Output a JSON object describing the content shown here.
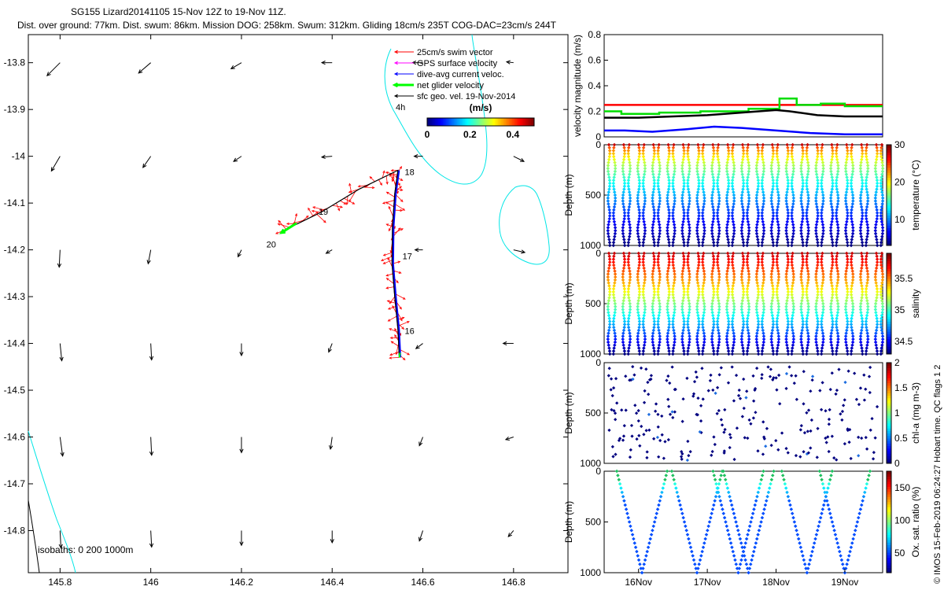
{
  "title": {
    "line1": "SG155 Lizard20141105 15-Nov 12Z to 19-Nov 11Z.",
    "line2": "Dist. over ground: 77km. Dist. swum: 86km. Mission DOG: 258km. Swum: 312km. Gliding 18cm/s 235T COG-DAC=23cm/s 244T"
  },
  "footer": "© IMOS 15-Feb-2019 06:24:27 Hobart time. QC flags 1  2",
  "colors": {
    "swim": "#ff0000",
    "gps": "#ff00ff",
    "dac": "#0000ff",
    "net": "#00ff00",
    "geo": "#000000",
    "isobath": "#00e6e6"
  },
  "chart_data": [
    {
      "id": "map",
      "type": "scatter",
      "xlim": [
        145.73,
        146.92
      ],
      "ylim": [
        -14.89,
        -13.74
      ],
      "xticks": [
        145.8,
        146,
        146.2,
        146.4,
        146.6,
        146.8
      ],
      "xtick_labels": [
        "145.8",
        "146",
        "146.2",
        "146.4",
        "146.6",
        "146.8"
      ],
      "yticks": [
        -13.8,
        -13.9,
        -14,
        -14.1,
        -14.2,
        -14.3,
        -14.4,
        -14.5,
        -14.6,
        -14.7,
        -14.8
      ],
      "ytick_labels": [
        "-13.8",
        "-13.9",
        "-14",
        "-14.1",
        "-14.2",
        "-14.3",
        "-14.4",
        "-14.5",
        "-14.6",
        "-14.7",
        "-14.8"
      ],
      "legend": {
        "placement": "top-right",
        "entries": [
          {
            "label": "25cm/s swim vector",
            "color": "#ff0000"
          },
          {
            "label": "GPS surface velocity",
            "color": "#ff00ff"
          },
          {
            "label": "dive-avg current veloc.",
            "color": "#0000ff"
          },
          {
            "label": "net glider velocity",
            "color": "#00ff00"
          },
          {
            "label": "sfc geo. vel. 19-Nov-2014",
            "color": "#000000"
          }
        ],
        "note": "4h"
      },
      "colorbar": {
        "label": "(m/s)",
        "ticks": [
          "0",
          "0.2",
          "0.4"
        ],
        "range": [
          0,
          0.5
        ]
      },
      "isobath_label": "isobaths: 0   200  1000m",
      "track": [
        {
          "lon": 146.548,
          "lat": -14.43
        },
        {
          "lon": 146.545,
          "lat": -14.37
        },
        {
          "lon": 146.538,
          "lat": -14.3
        },
        {
          "lon": 146.532,
          "lat": -14.23
        },
        {
          "lon": 146.533,
          "lat": -14.15
        },
        {
          "lon": 146.538,
          "lat": -14.08
        },
        {
          "lon": 146.545,
          "lat": -14.03
        },
        {
          "lon": 146.46,
          "lat": -14.07
        },
        {
          "lon": 146.375,
          "lat": -14.12
        },
        {
          "lon": 146.29,
          "lat": -14.16
        }
      ],
      "day_labels": [
        {
          "text": "16",
          "lon": 146.56,
          "lat": -14.38
        },
        {
          "text": "17",
          "lon": 146.555,
          "lat": -14.22
        },
        {
          "text": "18",
          "lon": 146.56,
          "lat": -14.04
        },
        {
          "text": "19",
          "lon": 146.37,
          "lat": -14.125
        },
        {
          "text": "20",
          "lon": 146.255,
          "lat": -14.195
        }
      ],
      "geo_vectors": {
        "lons": [
          145.8,
          146.0,
          146.2,
          146.4,
          146.6,
          146.8
        ],
        "lats": [
          -13.8,
          -14.0,
          -14.2,
          -14.4,
          -14.6,
          -14.8
        ],
        "u": [
          [
            -0.15,
            -0.14,
            -0.12,
            -0.12,
            -0.12,
            -0.08
          ],
          [
            -0.1,
            -0.09,
            -0.09,
            -0.12,
            -0.1,
            0.12
          ],
          [
            -0.01,
            -0.03,
            -0.04,
            -0.07,
            -0.09,
            0.13
          ],
          [
            0.02,
            0.01,
            0.0,
            -0.04,
            -0.08,
            -0.12
          ],
          [
            0.03,
            0.01,
            0.0,
            -0.02,
            -0.04,
            -0.09
          ],
          [
            0.01,
            0.01,
            0.0,
            0.0,
            -0.04,
            -0.06
          ]
        ],
        "v": [
          [
            -0.15,
            -0.12,
            -0.07,
            0.0,
            0.0,
            0.01
          ],
          [
            -0.17,
            -0.13,
            -0.06,
            -0.01,
            0.0,
            -0.06
          ],
          [
            -0.2,
            -0.16,
            -0.08,
            -0.04,
            0.0,
            -0.03
          ],
          [
            -0.2,
            -0.19,
            -0.14,
            -0.1,
            -0.06,
            0.0
          ],
          [
            -0.22,
            -0.21,
            -0.18,
            -0.14,
            -0.1,
            -0.03
          ],
          [
            -0.2,
            -0.19,
            -0.17,
            -0.14,
            -0.12,
            -0.07
          ]
        ]
      }
    },
    {
      "id": "velocity",
      "type": "line",
      "ylabel": "velocity magnitude (m/s)",
      "xlim": [
        15.5,
        19.55
      ],
      "ylim": [
        0,
        0.8
      ],
      "yticks": [
        0,
        0.2,
        0.4,
        0.6,
        0.8
      ],
      "ytick_labels": [
        "0",
        "0.2",
        "0.4",
        "0.6",
        "0.8"
      ],
      "series": [
        {
          "color": "#ff0000",
          "x": [
            15.5,
            19.55
          ],
          "y": [
            0.25,
            0.25
          ]
        },
        {
          "color": "#00dd00",
          "x": [
            15.5,
            15.75,
            15.75,
            16.3,
            16.3,
            16.9,
            16.9,
            17.6,
            17.6,
            18.05,
            18.05,
            18.3,
            18.3,
            18.65,
            18.65,
            19.0,
            19.0,
            19.55
          ],
          "y": [
            0.2,
            0.2,
            0.18,
            0.18,
            0.19,
            0.19,
            0.2,
            0.2,
            0.22,
            0.22,
            0.3,
            0.3,
            0.25,
            0.25,
            0.26,
            0.26,
            0.24,
            0.24
          ]
        },
        {
          "color": "#000000",
          "x": [
            15.5,
            16.0,
            16.5,
            17.0,
            17.5,
            18.0,
            18.2,
            18.6,
            19.0,
            19.55
          ],
          "y": [
            0.15,
            0.15,
            0.16,
            0.17,
            0.19,
            0.21,
            0.2,
            0.17,
            0.16,
            0.16
          ]
        },
        {
          "color": "#0000ff",
          "x": [
            15.5,
            15.8,
            16.2,
            16.7,
            17.1,
            17.5,
            18.0,
            18.5,
            19.0,
            19.55
          ],
          "y": [
            0.05,
            0.05,
            0.04,
            0.06,
            0.08,
            0.07,
            0.05,
            0.03,
            0.02,
            0.02
          ]
        }
      ]
    },
    {
      "id": "temperature",
      "type": "scatter",
      "ylabel": "Depth (m)",
      "colorbar_label": "temperature (°C)",
      "clim": [
        3,
        30
      ],
      "colorbar_ticks": [
        "10",
        "20",
        "30"
      ],
      "ylim": [
        1000,
        0
      ],
      "yticks": [
        "0",
        "500",
        "1000"
      ],
      "dives": 19
    },
    {
      "id": "salinity",
      "type": "scatter",
      "ylabel": "Depth (m)",
      "colorbar_label": "salinity",
      "clim": [
        34.3,
        35.9
      ],
      "colorbar_ticks": [
        "34.5",
        "35",
        "35.5"
      ],
      "ylim": [
        1000,
        0
      ],
      "yticks": [
        "0",
        "500",
        "1000"
      ],
      "dives": 19
    },
    {
      "id": "chla",
      "type": "scatter",
      "ylabel": "Depth (m)",
      "colorbar_label": "chl-a (mg m-3)",
      "clim": [
        0,
        2
      ],
      "colorbar_ticks": [
        "0",
        "0.5",
        "1",
        "1.5",
        "2"
      ],
      "ylim": [
        1000,
        0
      ],
      "yticks": [
        "0",
        "500",
        "1000"
      ],
      "dives": 19
    },
    {
      "id": "oxygen",
      "type": "scatter",
      "ylabel": "Depth (m)",
      "colorbar_label": "Ox. sat. ratio (%)",
      "clim": [
        20,
        175
      ],
      "colorbar_ticks": [
        "50",
        "100",
        "150"
      ],
      "ylim": [
        1000,
        0
      ],
      "yticks": [
        "0",
        "500",
        "1000"
      ],
      "xticks": [
        "16Nov",
        "17Nov",
        "18Nov",
        "19Nov"
      ],
      "dives": 6
    }
  ]
}
